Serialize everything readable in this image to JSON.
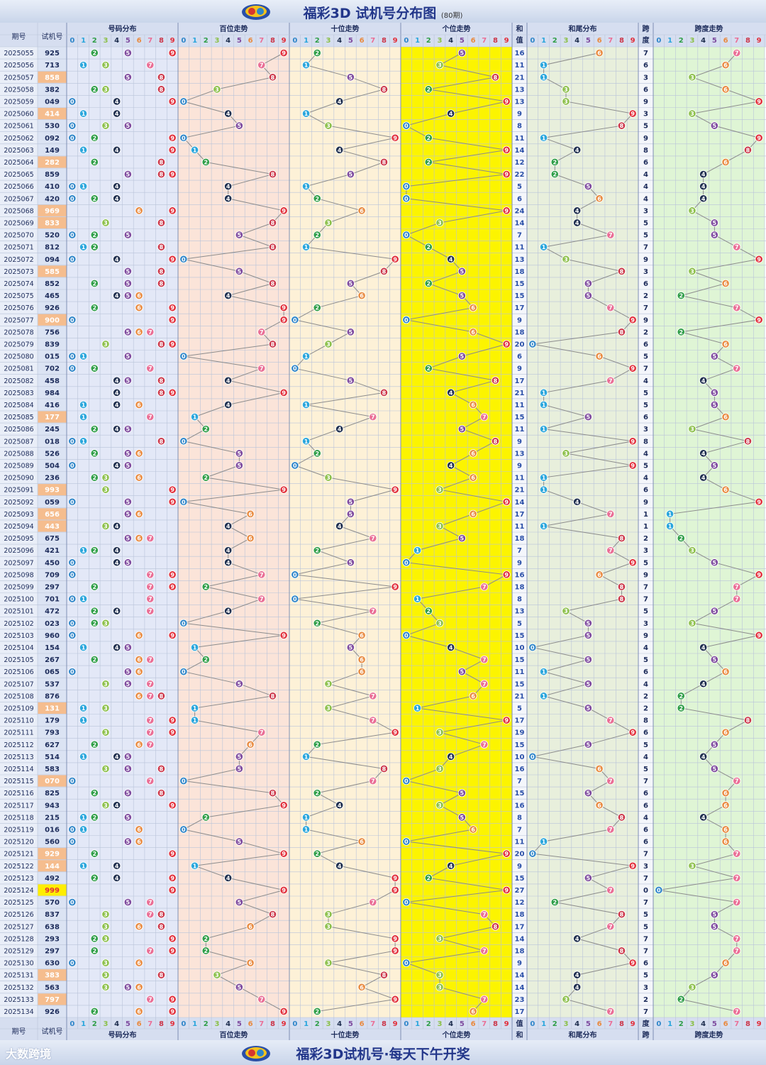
{
  "header": {
    "title": "福彩3D 试机号分布图",
    "subtitle": "(80期)"
  },
  "footer": {
    "slogan": "福彩3D试机号·每天下午开奖",
    "brand": "大数跨境"
  },
  "columns": {
    "issue": "期号",
    "number": "试机号",
    "dist": "号码分布",
    "hundreds": "百位走势",
    "tens": "十位走势",
    "units": "个位走势",
    "sum": [
      "和",
      "值"
    ],
    "sum_tail": "和尾分布",
    "span": [
      "跨",
      "度"
    ],
    "span_trend": "跨度走势",
    "digits": [
      "0",
      "1",
      "2",
      "3",
      "4",
      "5",
      "6",
      "7",
      "8",
      "9"
    ]
  },
  "colors": {
    "ball": [
      "#2f86c9",
      "#2aa6dc",
      "#2e9e47",
      "#8cc04a",
      "#1f2f4f",
      "#7e4a9e",
      "#e98a3f",
      "#ea6f96",
      "#cc3548",
      "#e22e3a"
    ],
    "zone_dist": "#e3e8f7",
    "zone_hundreds": "#fbe4d9",
    "zone_tens": "#fdf1d7",
    "zone_units": "#fcf400",
    "zone_sum_tail": "#e8efdc",
    "zone_span": "#dff5d5",
    "highlight_pair": "#f5bd8e",
    "highlight_triple": "#ffee00"
  },
  "chart_data": {
    "type": "table",
    "rows": [
      {
        "issue": "2025055",
        "number": "925",
        "sum": 16,
        "span": 7
      },
      {
        "issue": "2025056",
        "number": "713",
        "sum": 11,
        "span": 6
      },
      {
        "issue": "2025057",
        "number": "858",
        "sum": 21,
        "span": 3
      },
      {
        "issue": "2025058",
        "number": "382",
        "sum": 13,
        "span": 6
      },
      {
        "issue": "2025059",
        "number": "049",
        "sum": 13,
        "span": 9
      },
      {
        "issue": "2025060",
        "number": "414",
        "sum": 9,
        "span": 3
      },
      {
        "issue": "2025061",
        "number": "530",
        "sum": 8,
        "span": 5
      },
      {
        "issue": "2025062",
        "number": "092",
        "sum": 11,
        "span": 9
      },
      {
        "issue": "2025063",
        "number": "149",
        "sum": 14,
        "span": 8
      },
      {
        "issue": "2025064",
        "number": "282",
        "sum": 12,
        "span": 6
      },
      {
        "issue": "2025065",
        "number": "859",
        "sum": 22,
        "span": 4
      },
      {
        "issue": "2025066",
        "number": "410",
        "sum": 5,
        "span": 4
      },
      {
        "issue": "2025067",
        "number": "420",
        "sum": 6,
        "span": 4
      },
      {
        "issue": "2025068",
        "number": "969",
        "sum": 24,
        "span": 3
      },
      {
        "issue": "2025069",
        "number": "833",
        "sum": 14,
        "span": 5
      },
      {
        "issue": "2025070",
        "number": "520",
        "sum": 7,
        "span": 5
      },
      {
        "issue": "2025071",
        "number": "812",
        "sum": 11,
        "span": 7
      },
      {
        "issue": "2025072",
        "number": "094",
        "sum": 13,
        "span": 9
      },
      {
        "issue": "2025073",
        "number": "585",
        "sum": 18,
        "span": 3
      },
      {
        "issue": "2025074",
        "number": "852",
        "sum": 15,
        "span": 6
      },
      {
        "issue": "2025075",
        "number": "465",
        "sum": 15,
        "span": 2
      },
      {
        "issue": "2025076",
        "number": "926",
        "sum": 17,
        "span": 7
      },
      {
        "issue": "2025077",
        "number": "900",
        "sum": 9,
        "span": 9
      },
      {
        "issue": "2025078",
        "number": "756",
        "sum": 18,
        "span": 2
      },
      {
        "issue": "2025079",
        "number": "839",
        "sum": 20,
        "span": 6
      },
      {
        "issue": "2025080",
        "number": "015",
        "sum": 6,
        "span": 5
      },
      {
        "issue": "2025081",
        "number": "702",
        "sum": 9,
        "span": 7
      },
      {
        "issue": "2025082",
        "number": "458",
        "sum": 17,
        "span": 4
      },
      {
        "issue": "2025083",
        "number": "984",
        "sum": 21,
        "span": 5
      },
      {
        "issue": "2025084",
        "number": "416",
        "sum": 11,
        "span": 5
      },
      {
        "issue": "2025085",
        "number": "177",
        "sum": 15,
        "span": 6
      },
      {
        "issue": "2025086",
        "number": "245",
        "sum": 11,
        "span": 3
      },
      {
        "issue": "2025087",
        "number": "018",
        "sum": 9,
        "span": 8
      },
      {
        "issue": "2025088",
        "number": "526",
        "sum": 13,
        "span": 4
      },
      {
        "issue": "2025089",
        "number": "504",
        "sum": 9,
        "span": 5
      },
      {
        "issue": "2025090",
        "number": "236",
        "sum": 11,
        "span": 4
      },
      {
        "issue": "2025091",
        "number": "993",
        "sum": 21,
        "span": 6
      },
      {
        "issue": "2025092",
        "number": "059",
        "sum": 14,
        "span": 9
      },
      {
        "issue": "2025093",
        "number": "656",
        "sum": 17,
        "span": 1
      },
      {
        "issue": "2025094",
        "number": "443",
        "sum": 11,
        "span": 1
      },
      {
        "issue": "2025095",
        "number": "675",
        "sum": 18,
        "span": 2
      },
      {
        "issue": "2025096",
        "number": "421",
        "sum": 7,
        "span": 3
      },
      {
        "issue": "2025097",
        "number": "450",
        "sum": 9,
        "span": 5
      },
      {
        "issue": "2025098",
        "number": "709",
        "sum": 16,
        "span": 9
      },
      {
        "issue": "2025099",
        "number": "297",
        "sum": 18,
        "span": 7
      },
      {
        "issue": "2025100",
        "number": "701",
        "sum": 8,
        "span": 7
      },
      {
        "issue": "2025101",
        "number": "472",
        "sum": 13,
        "span": 5
      },
      {
        "issue": "2025102",
        "number": "023",
        "sum": 5,
        "span": 3
      },
      {
        "issue": "2025103",
        "number": "960",
        "sum": 15,
        "span": 9
      },
      {
        "issue": "2025104",
        "number": "154",
        "sum": 10,
        "span": 4
      },
      {
        "issue": "2025105",
        "number": "267",
        "sum": 15,
        "span": 5
      },
      {
        "issue": "2025106",
        "number": "065",
        "sum": 11,
        "span": 6
      },
      {
        "issue": "2025107",
        "number": "537",
        "sum": 15,
        "span": 4
      },
      {
        "issue": "2025108",
        "number": "876",
        "sum": 21,
        "span": 2
      },
      {
        "issue": "2025109",
        "number": "131",
        "sum": 5,
        "span": 2
      },
      {
        "issue": "2025110",
        "number": "179",
        "sum": 17,
        "span": 8
      },
      {
        "issue": "2025111",
        "number": "793",
        "sum": 19,
        "span": 6
      },
      {
        "issue": "2025112",
        "number": "627",
        "sum": 15,
        "span": 5
      },
      {
        "issue": "2025113",
        "number": "514",
        "sum": 10,
        "span": 4
      },
      {
        "issue": "2025114",
        "number": "583",
        "sum": 16,
        "span": 5
      },
      {
        "issue": "2025115",
        "number": "070",
        "sum": 7,
        "span": 7
      },
      {
        "issue": "2025116",
        "number": "825",
        "sum": 15,
        "span": 6
      },
      {
        "issue": "2025117",
        "number": "943",
        "sum": 16,
        "span": 6
      },
      {
        "issue": "2025118",
        "number": "215",
        "sum": 8,
        "span": 4
      },
      {
        "issue": "2025119",
        "number": "016",
        "sum": 7,
        "span": 6
      },
      {
        "issue": "2025120",
        "number": "560",
        "sum": 11,
        "span": 6
      },
      {
        "issue": "2025121",
        "number": "929",
        "sum": 20,
        "span": 7
      },
      {
        "issue": "2025122",
        "number": "144",
        "sum": 9,
        "span": 3
      },
      {
        "issue": "2025123",
        "number": "492",
        "sum": 15,
        "span": 7
      },
      {
        "issue": "2025124",
        "number": "999",
        "sum": 27,
        "span": 0
      },
      {
        "issue": "2025125",
        "number": "570",
        "sum": 12,
        "span": 7
      },
      {
        "issue": "2025126",
        "number": "837",
        "sum": 18,
        "span": 5
      },
      {
        "issue": "2025127",
        "number": "638",
        "sum": 17,
        "span": 5
      },
      {
        "issue": "2025128",
        "number": "293",
        "sum": 14,
        "span": 7
      },
      {
        "issue": "2025129",
        "number": "297",
        "sum": 18,
        "span": 7
      },
      {
        "issue": "2025130",
        "number": "630",
        "sum": 9,
        "span": 6
      },
      {
        "issue": "2025131",
        "number": "383",
        "sum": 14,
        "span": 5
      },
      {
        "issue": "2025132",
        "number": "563",
        "sum": 14,
        "span": 3
      },
      {
        "issue": "2025133",
        "number": "797",
        "sum": 23,
        "span": 2
      },
      {
        "issue": "2025134",
        "number": "926",
        "sum": 17,
        "span": 7
      }
    ]
  }
}
